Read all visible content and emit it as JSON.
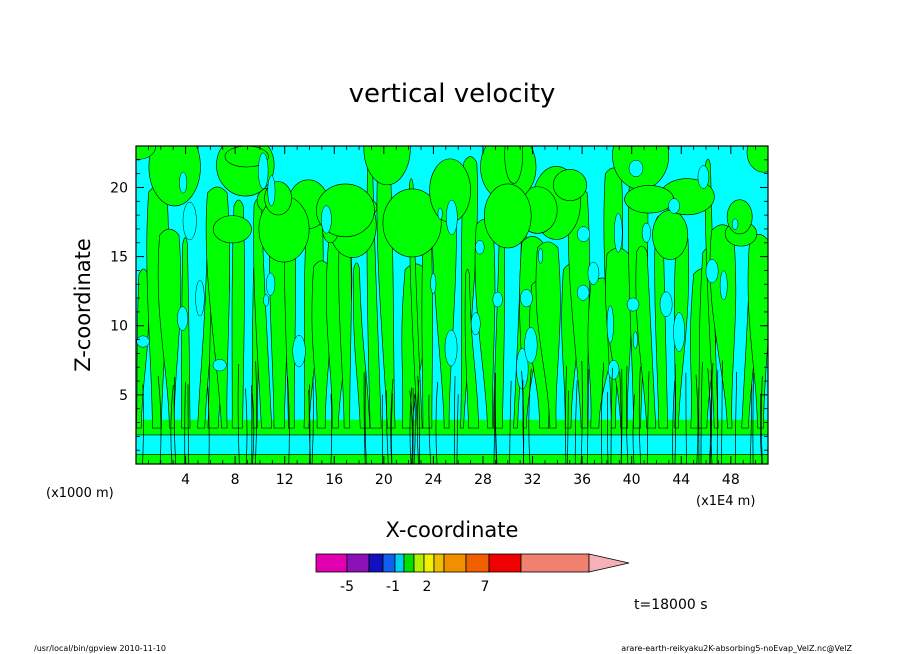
{
  "chart_data": {
    "type": "heatmap",
    "title": "vertical velocity",
    "xlabel": "X-coordinate",
    "ylabel": "Z-coordinate",
    "x_unit_left": "(x1000 m)",
    "x_unit_right": "(x1E4 m)",
    "xlim": [
      0,
      51
    ],
    "ylim": [
      0,
      23
    ],
    "x_ticks": [
      4,
      8,
      12,
      16,
      20,
      24,
      28,
      32,
      36,
      40,
      44,
      48
    ],
    "y_ticks": [
      5,
      10,
      15,
      20
    ],
    "grid": false,
    "colorbar": {
      "colors": [
        "#e000b0",
        "#8a10b8",
        "#1010c0",
        "#1060f0",
        "#00d0f0",
        "#00e000",
        "#b0f000",
        "#f0f000",
        "#f0c000",
        "#f09000",
        "#f06000",
        "#f00000",
        "#f08070",
        "#f8b0b8"
      ],
      "tick_labels": [
        "-5",
        "-1",
        "2",
        "7"
      ]
    },
    "field_colors": {
      "down": "#00ffff",
      "up": "#00ff00"
    },
    "time_label": "t=18000 s",
    "footer_left": "/usr/local/bin/gpview  2010-11-10",
    "footer_right": "arare-earth-reikyaku2K-absorbing5-noEvap_VelZ.nc@VelZ"
  }
}
